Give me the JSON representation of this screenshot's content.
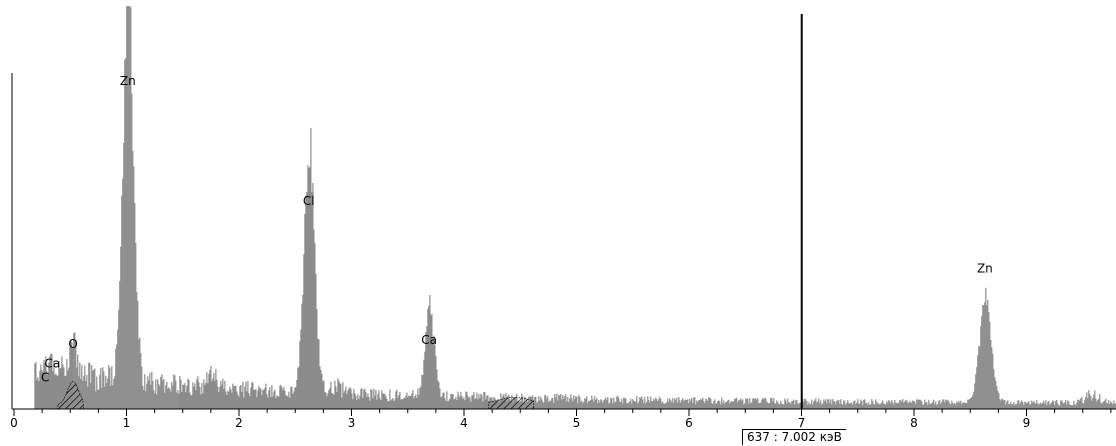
{
  "chart_data": {
    "type": "bar",
    "xlim": [
      0,
      9.8
    ],
    "ylim": [
      0,
      100
    ],
    "x_ticks": [
      0,
      1,
      2,
      3,
      4,
      5,
      6,
      7,
      8,
      9
    ],
    "peaks": [
      {
        "label": "Zn",
        "x": 1.012,
        "y": 100,
        "sigma": 0.045
      },
      {
        "label": "Cl",
        "x": 2.62,
        "y": 63,
        "sigma": 0.045
      },
      {
        "label": "Ca",
        "x": 3.69,
        "y": 23,
        "sigma": 0.04
      },
      {
        "label": "Zn",
        "x": 8.63,
        "y": 27,
        "sigma": 0.05
      },
      {
        "label": "O",
        "x": 0.525,
        "y": 7,
        "sigma": 0.04
      },
      {
        "label": "Ca",
        "x": 0.341,
        "y": 3,
        "sigma": 0.03
      },
      {
        "label": "C",
        "x": 0.277,
        "y": 2,
        "sigma": 0.03
      }
    ],
    "cursor": {
      "x": 7.002
    }
  },
  "colors": {
    "fill": "#8c8c8c",
    "axis": "#000000",
    "hatch": "#000000"
  },
  "cursor_readout": "637 : 7.002 кэВ"
}
